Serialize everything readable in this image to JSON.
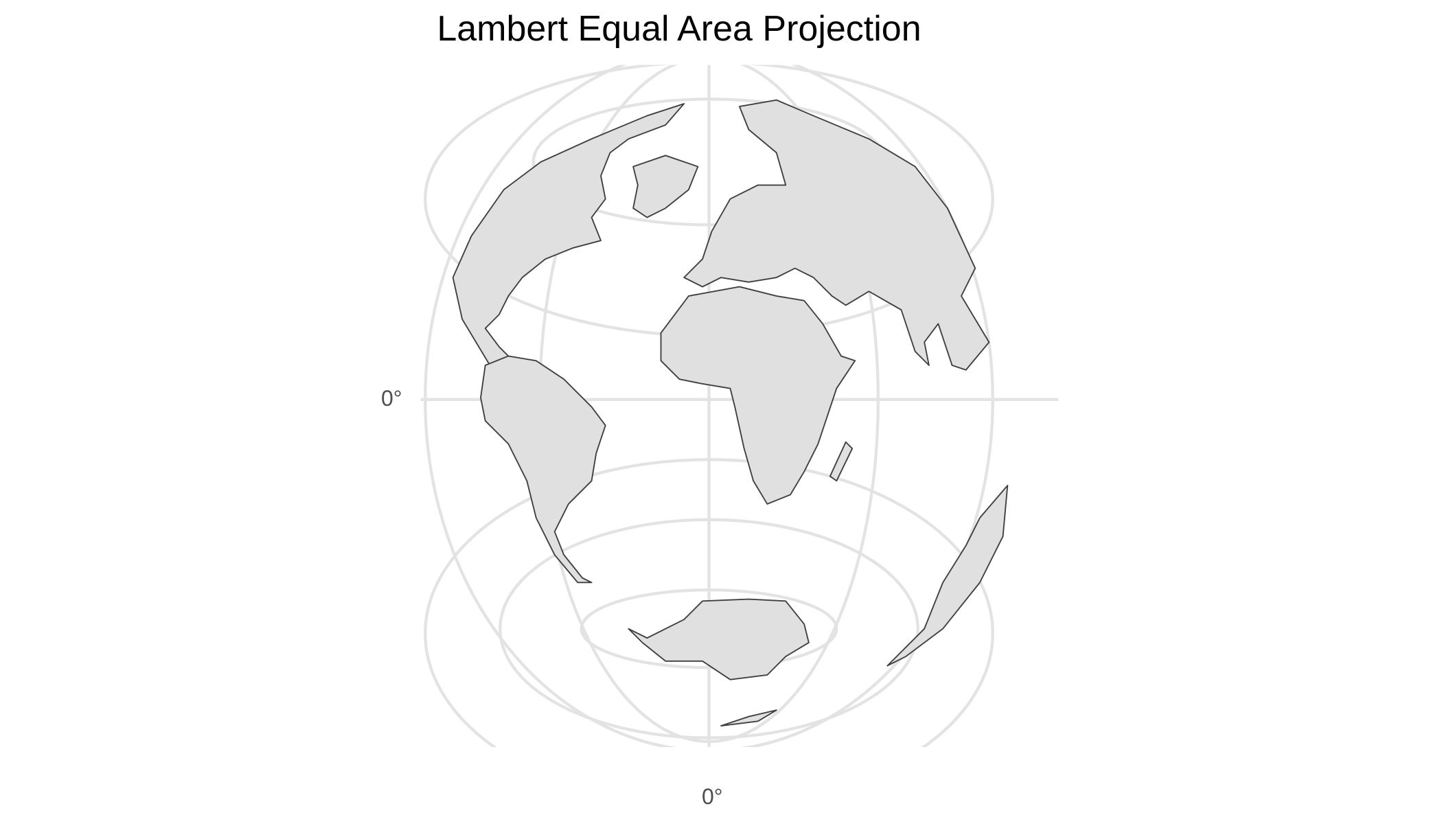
{
  "title": "Lambert Equal Area Projection",
  "axes": {
    "y_tick_label": "0°",
    "x_tick_label": "0°"
  },
  "map": {
    "projection": "Lambert azimuthal equal-area",
    "land_fill": "#e0e0e0",
    "border_color": "#404040",
    "graticule_color": "#e3e3e3",
    "background": "#ffffff"
  }
}
